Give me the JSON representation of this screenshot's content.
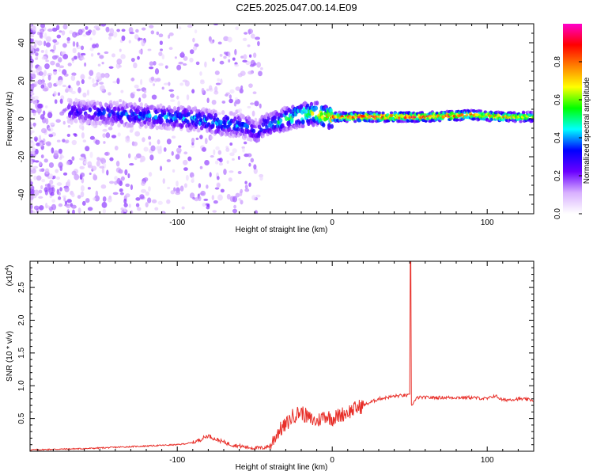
{
  "title": "C2E5.2025.047.00.14.E09",
  "chart_data": [
    {
      "type": "heatmap",
      "xlabel": "Height of straight line (km)",
      "ylabel": "Frequency (Hz)",
      "xlim": [
        -195,
        130
      ],
      "ylim": [
        -50,
        50
      ],
      "xticks": [
        -100,
        0,
        100
      ],
      "yticks": [
        -40,
        -20,
        0,
        20,
        40
      ],
      "colorbar": {
        "label": "Normalized spectral amplitude",
        "range": [
          0,
          1
        ],
        "ticks": [
          "0.0",
          "0.2",
          "0.4",
          "0.6",
          "0.8"
        ],
        "tick_values": [
          0,
          0.2,
          0.4,
          0.6,
          0.8
        ],
        "colors": [
          "#ffffff",
          "#d8b0ff",
          "#6a00ff",
          "#0000ff",
          "#00ffff",
          "#00ff00",
          "#ffff00",
          "#ff8000",
          "#ff0000",
          "#ff00cc"
        ]
      },
      "ridge": {
        "x": [
          -170,
          -150,
          -130,
          -110,
          -90,
          -75,
          -65,
          -58,
          -52,
          -48,
          -45,
          -40,
          -35,
          -30,
          -20,
          -10,
          -5,
          0,
          20,
          60,
          90,
          110,
          130
        ],
        "y": [
          4,
          3,
          2,
          1,
          0,
          -2,
          -3,
          -4,
          -5,
          -8,
          -4,
          -3,
          -2,
          0,
          2,
          3,
          1,
          1,
          1,
          1,
          2,
          1,
          1
        ],
        "amplitude": [
          0.3,
          0.35,
          0.4,
          0.42,
          0.45,
          0.45,
          0.45,
          0.4,
          0.4,
          0.3,
          0.4,
          0.45,
          0.5,
          0.55,
          0.65,
          0.7,
          0.75,
          0.85,
          0.95,
          0.95,
          0.9,
          0.85,
          0.7
        ]
      }
    },
    {
      "type": "line",
      "xlabel": "Height of straight line (km)",
      "ylabel": "SNR (10 * v/v)",
      "y_multiplier_label": "(x10",
      "y_multiplier_exp": "4",
      "xlim": [
        -195,
        130
      ],
      "ylim": [
        0,
        2.9
      ],
      "xticks": [
        -100,
        0,
        100
      ],
      "yticks": [
        0.5,
        1.0,
        1.5,
        2.0,
        2.5
      ],
      "ytick_labels": [
        "0.5",
        "1.0",
        "1.5",
        "2.0",
        "2.5"
      ],
      "series": [
        {
          "color": "#e8302a",
          "x": [
            -195,
            -180,
            -160,
            -140,
            -120,
            -100,
            -90,
            -85,
            -80,
            -75,
            -70,
            -65,
            -60,
            -55,
            -50,
            -45,
            -40,
            -35,
            -30,
            -25,
            -20,
            -15,
            -10,
            -5,
            0,
            5,
            10,
            15,
            20,
            25,
            30,
            35,
            40,
            45,
            50,
            50.5,
            51,
            55,
            60,
            70,
            80,
            90,
            100,
            105,
            110,
            120,
            130
          ],
          "y": [
            0.02,
            0.03,
            0.04,
            0.06,
            0.08,
            0.1,
            0.13,
            0.18,
            0.24,
            0.18,
            0.14,
            0.1,
            0.08,
            0.06,
            0.05,
            0.05,
            0.08,
            0.3,
            0.4,
            0.55,
            0.6,
            0.5,
            0.45,
            0.55,
            0.5,
            0.55,
            0.6,
            0.65,
            0.7,
            0.75,
            0.8,
            0.82,
            0.84,
            0.85,
            0.85,
            2.9,
            0.7,
            0.82,
            0.82,
            0.82,
            0.82,
            0.82,
            0.8,
            0.85,
            0.78,
            0.8,
            0.78
          ]
        }
      ]
    }
  ]
}
